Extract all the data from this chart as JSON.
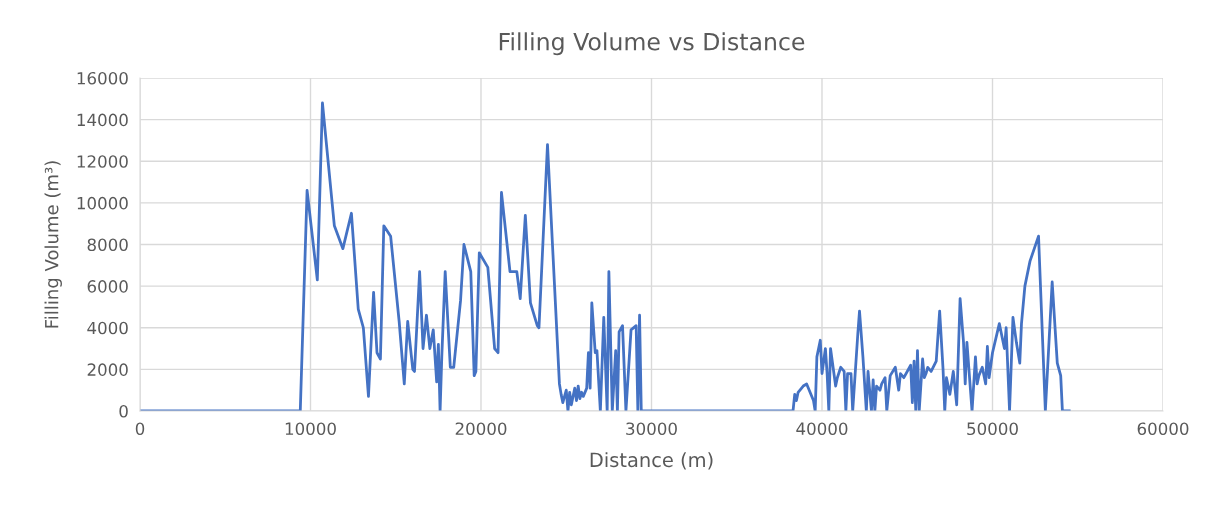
{
  "chart_data": {
    "type": "line",
    "title": "Filling Volume vs Distance",
    "xlabel": "Distance (m)",
    "ylabel": "Filling Volume (m³)",
    "xlim": [
      0,
      60000
    ],
    "xticks": [
      0,
      10000,
      20000,
      30000,
      40000,
      50000,
      60000
    ],
    "ylim": [
      0,
      16000
    ],
    "yticks": [
      0,
      2000,
      4000,
      6000,
      8000,
      10000,
      12000,
      14000,
      16000
    ],
    "grid": true,
    "legend": false,
    "marker": "none",
    "line_style": "solid",
    "series": [
      {
        "color": "#4472c4",
        "x": [
          0,
          9400,
          9800,
          10400,
          10700,
          11400,
          11900,
          12400,
          12800,
          13100,
          13400,
          13700,
          13900,
          14100,
          14300,
          14700,
          15200,
          15500,
          15700,
          16000,
          16100,
          16400,
          16600,
          16800,
          17000,
          17200,
          17400,
          17500,
          17600,
          17700,
          17900,
          18200,
          18400,
          18800,
          19000,
          19400,
          19600,
          19700,
          19900,
          20400,
          20800,
          21000,
          21200,
          21700,
          22100,
          22300,
          22600,
          22900,
          23300,
          23400,
          23900,
          24600,
          24700,
          24800,
          25000,
          25100,
          25200,
          25300,
          25500,
          25600,
          25700,
          25800,
          25900,
          26000,
          26200,
          26300,
          26400,
          26500,
          26700,
          26800,
          27000,
          27200,
          27400,
          27500,
          27700,
          27900,
          28000,
          28100,
          28300,
          28500,
          28800,
          29100,
          29200,
          29300,
          29400,
          38300,
          38400,
          38500,
          38600,
          38900,
          39100,
          39300,
          39500,
          39600,
          39700,
          39900,
          40000,
          40200,
          40300,
          40400,
          40500,
          40800,
          40900,
          41100,
          41300,
          41400,
          41500,
          41700,
          41800,
          42100,
          42200,
          42400,
          42600,
          42700,
          42900,
          43000,
          43100,
          43200,
          43400,
          43500,
          43700,
          43800,
          44000,
          44300,
          44500,
          44600,
          44800,
          45200,
          45300,
          45400,
          45500,
          45600,
          45700,
          45900,
          46000,
          46100,
          46200,
          46400,
          46700,
          46900,
          47100,
          47200,
          47300,
          47500,
          47700,
          47900,
          48100,
          48300,
          48400,
          48500,
          48800,
          49000,
          49100,
          49200,
          49400,
          49600,
          49700,
          49800,
          50000,
          50400,
          50600,
          50700,
          50800,
          51000,
          51200,
          51400,
          51600,
          51700,
          51900,
          52200,
          52700,
          53100,
          53500,
          53800,
          54000,
          54100,
          54500
        ],
        "values": [
          0,
          0,
          10600,
          6300,
          14800,
          8900,
          7800,
          9500,
          4900,
          4000,
          700,
          5700,
          2800,
          2500,
          8900,
          8400,
          4300,
          1300,
          4300,
          2000,
          1900,
          6700,
          3000,
          4600,
          3000,
          3900,
          1400,
          3200,
          0,
          2600,
          6700,
          2100,
          2100,
          5300,
          8000,
          6700,
          1700,
          1900,
          7600,
          6900,
          3000,
          2800,
          10500,
          6700,
          6700,
          5400,
          9400,
          5200,
          4100,
          4000,
          12800,
          1300,
          800,
          400,
          1000,
          0,
          900,
          300,
          1100,
          500,
          1200,
          600,
          900,
          700,
          1100,
          2800,
          1100,
          5200,
          2800,
          2900,
          0,
          4500,
          0,
          6700,
          0,
          2900,
          0,
          3800,
          4100,
          0,
          3900,
          4100,
          0,
          4600,
          0,
          0,
          800,
          500,
          900,
          1200,
          1300,
          900,
          500,
          0,
          2600,
          3400,
          1800,
          3000,
          1800,
          0,
          3000,
          1200,
          1600,
          2100,
          1900,
          0,
          1800,
          1800,
          0,
          3700,
          4800,
          2600,
          0,
          1900,
          0,
          1500,
          0,
          1200,
          1000,
          1300,
          1600,
          0,
          1700,
          2100,
          1000,
          1800,
          1600,
          2200,
          400,
          2400,
          0,
          2900,
          0,
          2500,
          1600,
          1800,
          2100,
          1900,
          2400,
          4800,
          2000,
          0,
          1600,
          800,
          1900,
          300,
          5400,
          3300,
          1300,
          3300,
          0,
          2600,
          1300,
          1700,
          2100,
          1300,
          3100,
          1600,
          2800,
          4200,
          3400,
          3000,
          4000,
          0,
          4500,
          3300,
          2300,
          4200,
          6000,
          7200,
          8400,
          0,
          6200,
          2300,
          1700,
          0,
          0
        ]
      }
    ]
  }
}
